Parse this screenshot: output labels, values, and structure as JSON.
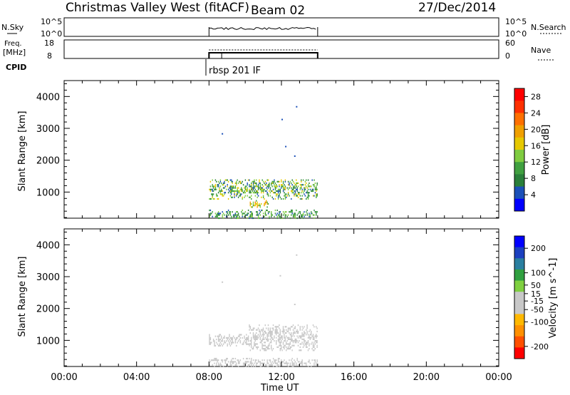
{
  "header": {
    "station": "Christmas Valley West (fitACF)",
    "beam": "Beam 02",
    "date": "27/Dec/2014"
  },
  "labels": {
    "nsky": "N.Sky",
    "freq_line1": "Freq.",
    "freq_line2": "[MHz]",
    "cpid": "CPID",
    "nsearch": "N.Search",
    "nave": "Nave",
    "cpid_name": "rbsp 201 IF",
    "nsky_tick_top": "10^5",
    "nsky_tick_bottom": "10^0",
    "freq_tick_top": "18",
    "freq_tick_bottom": "8",
    "nave_tick_top": "60",
    "nave_tick_bottom": "0",
    "nsearch_tick_top": "10^5",
    "nsearch_tick_bottom": "10^0"
  },
  "colors": {
    "power_scale": [
      "#0000ff",
      "#1b50b8",
      "#2a7f3a",
      "#40a040",
      "#7fcc40",
      "#e6c800",
      "#f0a000",
      "#ff7000",
      "#ff3000",
      "#ff0000"
    ],
    "velocity_scale": [
      "#ff0000",
      "#ff5000",
      "#ff9000",
      "#ffb800",
      "#c8c8c8",
      "#c8c8c8",
      "#7fd040",
      "#30a040",
      "#2a7fa0",
      "#1b40c0",
      "#0000ff"
    ]
  },
  "chart_data": [
    {
      "type": "heatmap",
      "panel": "power",
      "xlabel": "",
      "ylabel": "Slant Range [km]",
      "xlim_hours": [
        0,
        24
      ],
      "ylim_km": [
        180,
        4500
      ],
      "yticks": [
        "1000",
        "2000",
        "3000",
        "4000"
      ],
      "colorbar": {
        "label": "Power [dB]",
        "ticks": [
          "4",
          "8",
          "12",
          "16",
          "20",
          "24",
          "28"
        ],
        "range": [
          0,
          30
        ]
      },
      "data_window_ut": [
        "08:00",
        "14:00"
      ],
      "scatter_bands": [
        {
          "start_ut": 8.0,
          "end_ut": 14.0,
          "range_km": [
            800,
            1400
          ],
          "power_db": [
            4,
            18
          ]
        },
        {
          "start_ut": 8.0,
          "end_ut": 14.0,
          "range_km": [
            200,
            450
          ],
          "power_db": [
            4,
            14
          ]
        },
        {
          "start_ut": 10.2,
          "end_ut": 11.3,
          "range_km": [
            550,
            750
          ],
          "power_db": [
            10,
            22
          ]
        }
      ],
      "isolated_echoes": [
        {
          "ut": 8.7,
          "range_km": 2850
        },
        {
          "ut": 12.0,
          "range_km": 3300
        },
        {
          "ut": 12.2,
          "range_km": 2450
        },
        {
          "ut": 12.8,
          "range_km": 3700
        },
        {
          "ut": 12.7,
          "range_km": 2150
        }
      ]
    },
    {
      "type": "heatmap",
      "panel": "velocity",
      "xlabel": "Time UT",
      "ylabel": "Slant Range [km]",
      "xlim_hours": [
        0,
        24
      ],
      "ylim_km": [
        180,
        4500
      ],
      "xticks": [
        "00:00",
        "04:00",
        "08:00",
        "12:00",
        "16:00",
        "20:00",
        "00:00"
      ],
      "yticks": [
        "1000",
        "2000",
        "3000",
        "4000"
      ],
      "colorbar": {
        "label": "Velocity [m s^-1]",
        "ticks": [
          "200",
          "100",
          "50",
          "15",
          "-15",
          "-50",
          "-100",
          "-200"
        ],
        "range": [
          -250,
          250
        ]
      },
      "data_window_ut": [
        "08:00",
        "14:00"
      ],
      "scatter_bands": [
        {
          "start_ut": 8.0,
          "end_ut": 10.2,
          "range_km": [
            850,
            1200
          ],
          "velocity": [
            -60,
            -40
          ]
        },
        {
          "start_ut": 10.2,
          "end_ut": 14.0,
          "range_km": [
            700,
            1500
          ],
          "velocity": [
            -20,
            20
          ]
        },
        {
          "start_ut": 8.0,
          "end_ut": 14.0,
          "range_km": [
            200,
            450
          ],
          "velocity": [
            -20,
            20
          ]
        }
      ],
      "isolated_echoes": [
        {
          "ut": 11.9,
          "range_km": 3050
        },
        {
          "ut": 8.7,
          "range_km": 2850
        },
        {
          "ut": 12.8,
          "range_km": 3700
        },
        {
          "ut": 12.7,
          "range_km": 2150
        }
      ]
    }
  ]
}
